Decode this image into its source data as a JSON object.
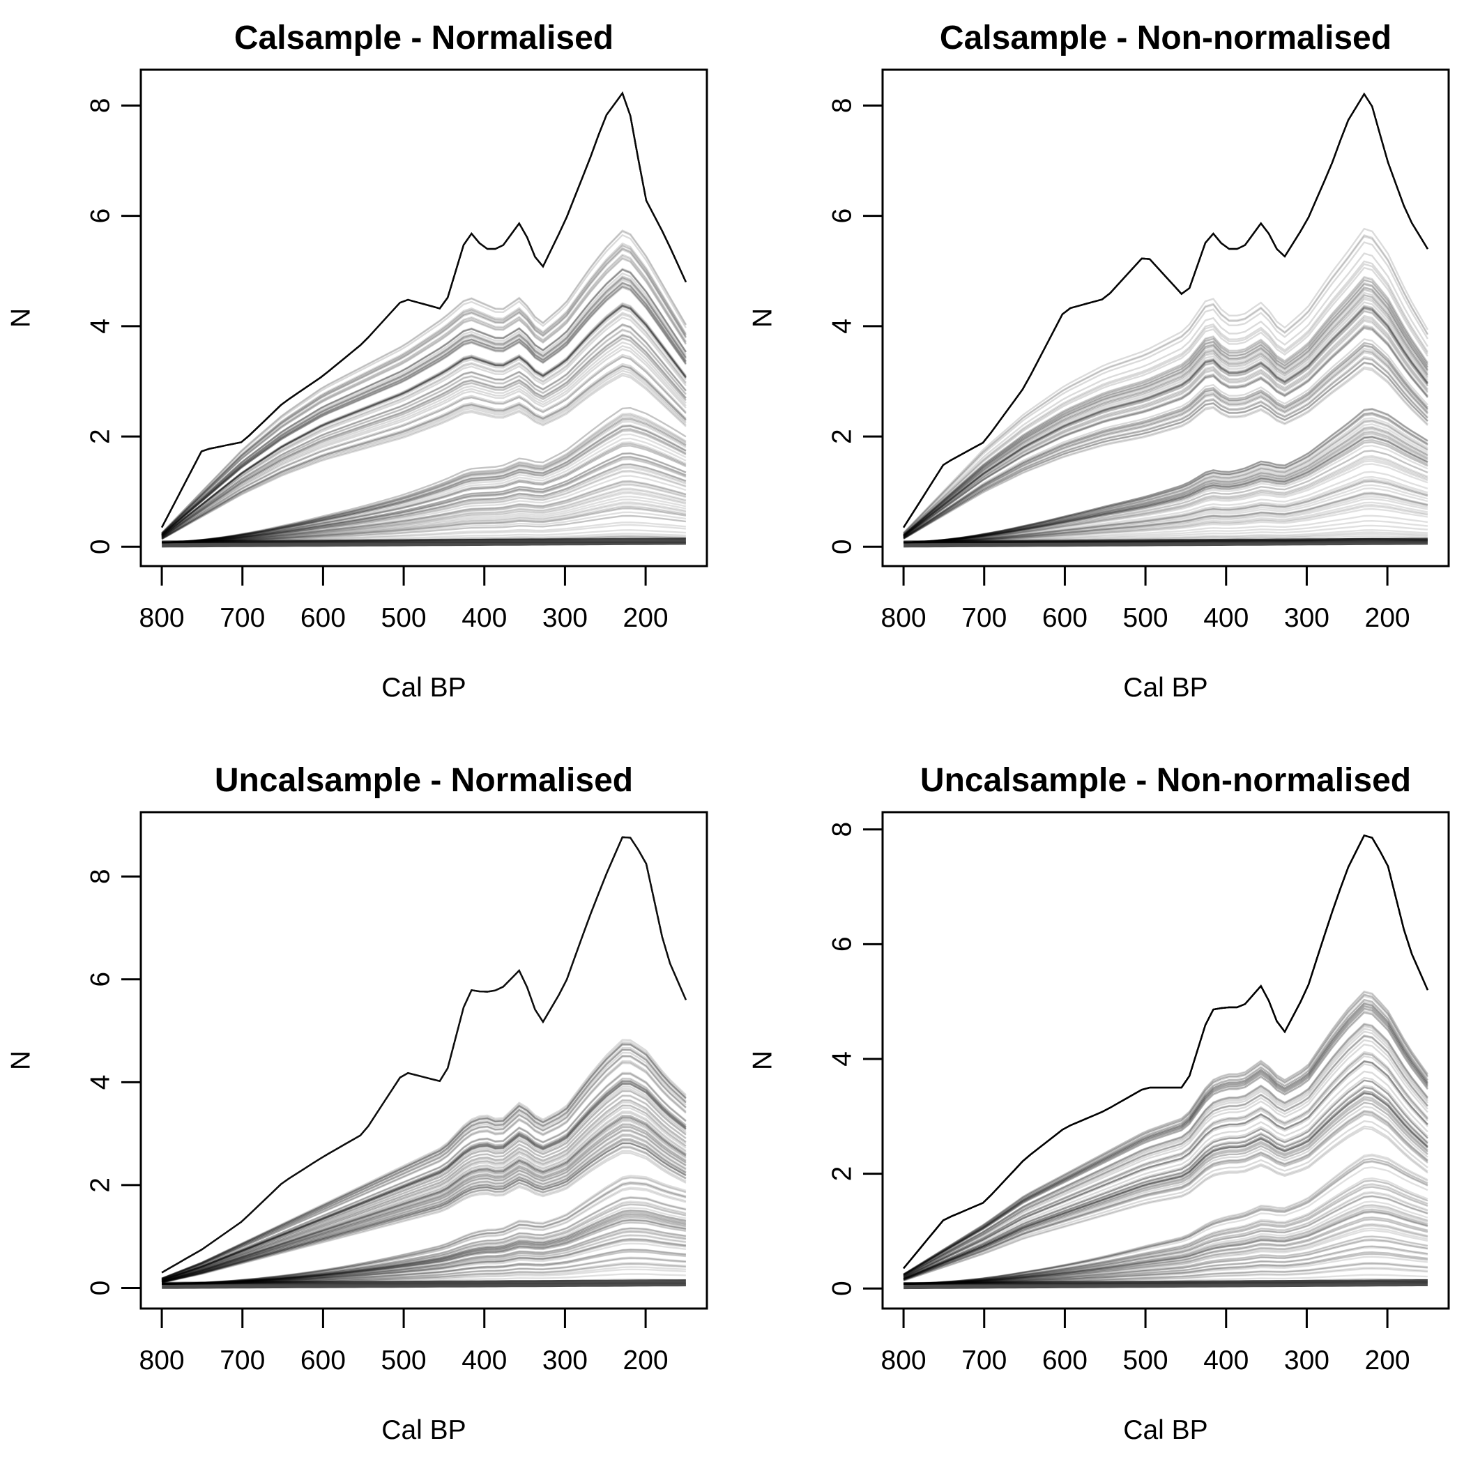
{
  "chart_data": [
    {
      "type": "line",
      "title": "Calsample - Normalised",
      "xlabel": "Cal BP",
      "ylabel": "N",
      "xlim": [
        826,
        124
      ],
      "ylim": [
        -0.35,
        8.65
      ],
      "x_ticks": [
        800,
        700,
        600,
        500,
        400,
        300,
        200
      ],
      "y_ticks": [
        0,
        2,
        4,
        6,
        8
      ],
      "x_range": [
        800,
        150
      ],
      "curves": 1000,
      "envelope": {
        "x": [
          800,
          750,
          700,
          650,
          600,
          550,
          500,
          450,
          420,
          400,
          380,
          355,
          330,
          300,
          270,
          250,
          225,
          200,
          175,
          150
        ],
        "upper": [
          0.35,
          1.75,
          1.9,
          2.6,
          3.1,
          3.7,
          4.5,
          4.3,
          5.75,
          5.4,
          5.4,
          5.9,
          5.0,
          5.9,
          7.0,
          7.8,
          8.3,
          6.3,
          5.6,
          4.8
        ],
        "bulk": [
          0.2,
          0.8,
          1.4,
          1.9,
          2.3,
          2.6,
          2.9,
          3.3,
          3.6,
          3.5,
          3.4,
          3.6,
          3.2,
          3.5,
          4.0,
          4.3,
          4.6,
          4.2,
          3.7,
          3.2
        ]
      }
    },
    {
      "type": "line",
      "title": "Calsample - Non-normalised",
      "xlabel": "Cal BP",
      "ylabel": "N",
      "xlim": [
        826,
        124
      ],
      "ylim": [
        -0.35,
        8.65
      ],
      "x_ticks": [
        800,
        700,
        600,
        500,
        400,
        300,
        200
      ],
      "y_ticks": [
        0,
        2,
        4,
        6,
        8
      ],
      "x_range": [
        800,
        150
      ],
      "curves": 1000,
      "envelope": {
        "x": [
          800,
          750,
          700,
          650,
          600,
          550,
          500,
          450,
          420,
          400,
          380,
          355,
          330,
          300,
          270,
          250,
          225,
          200,
          175,
          150
        ],
        "upper": [
          0.35,
          1.5,
          1.9,
          2.9,
          4.3,
          4.5,
          5.3,
          4.5,
          5.75,
          5.4,
          5.4,
          5.9,
          5.2,
          5.9,
          6.9,
          7.7,
          8.3,
          7.0,
          6.0,
          5.4
        ],
        "bulk": [
          0.2,
          0.8,
          1.4,
          1.9,
          2.3,
          2.6,
          2.8,
          3.1,
          3.6,
          3.3,
          3.3,
          3.5,
          3.1,
          3.4,
          3.9,
          4.2,
          4.6,
          4.2,
          3.6,
          3.1
        ]
      }
    },
    {
      "type": "line",
      "title": "Uncalsample - Normalised",
      "xlabel": "Cal BP",
      "ylabel": "N",
      "xlim": [
        826,
        124
      ],
      "ylim": [
        -0.4,
        9.25
      ],
      "x_ticks": [
        800,
        700,
        600,
        500,
        400,
        300,
        200
      ],
      "y_ticks": [
        0,
        2,
        4,
        6,
        8
      ],
      "x_range": [
        800,
        150
      ],
      "curves": 1000,
      "envelope": {
        "x": [
          800,
          750,
          700,
          650,
          600,
          550,
          500,
          450,
          420,
          400,
          380,
          355,
          330,
          300,
          270,
          250,
          225,
          200,
          175,
          150
        ],
        "upper": [
          0.3,
          0.75,
          1.3,
          2.05,
          2.55,
          3.0,
          4.2,
          4.0,
          5.8,
          5.75,
          5.8,
          6.2,
          5.1,
          5.9,
          7.2,
          8.0,
          8.9,
          8.3,
          6.5,
          5.6
        ],
        "bulk": [
          0.15,
          0.4,
          0.7,
          1.0,
          1.3,
          1.6,
          1.9,
          2.2,
          2.6,
          2.7,
          2.6,
          2.9,
          2.6,
          2.8,
          3.3,
          3.6,
          3.9,
          3.7,
          3.3,
          3.0
        ]
      }
    },
    {
      "type": "line",
      "title": "Uncalsample - Non-normalised",
      "xlabel": "Cal BP",
      "ylabel": "N",
      "xlim": [
        826,
        124
      ],
      "ylim": [
        -0.35,
        8.3
      ],
      "x_ticks": [
        800,
        700,
        600,
        500,
        400,
        300,
        200
      ],
      "y_ticks": [
        0,
        2,
        4,
        6,
        8
      ],
      "x_range": [
        800,
        150
      ],
      "curves": 1000,
      "envelope": {
        "x": [
          800,
          750,
          700,
          650,
          600,
          550,
          500,
          450,
          420,
          400,
          380,
          355,
          330,
          300,
          270,
          250,
          225,
          200,
          175,
          150
        ],
        "upper": [
          0.35,
          1.2,
          1.5,
          2.25,
          2.8,
          3.1,
          3.5,
          3.5,
          4.85,
          4.9,
          4.9,
          5.3,
          4.4,
          5.2,
          6.5,
          7.3,
          8.0,
          7.4,
          6.0,
          5.2
        ],
        "bulk": [
          0.2,
          0.55,
          0.9,
          1.3,
          1.6,
          1.9,
          2.2,
          2.4,
          2.9,
          3.0,
          3.0,
          3.2,
          2.9,
          3.1,
          3.6,
          3.9,
          4.2,
          3.9,
          3.4,
          3.0
        ]
      }
    }
  ]
}
